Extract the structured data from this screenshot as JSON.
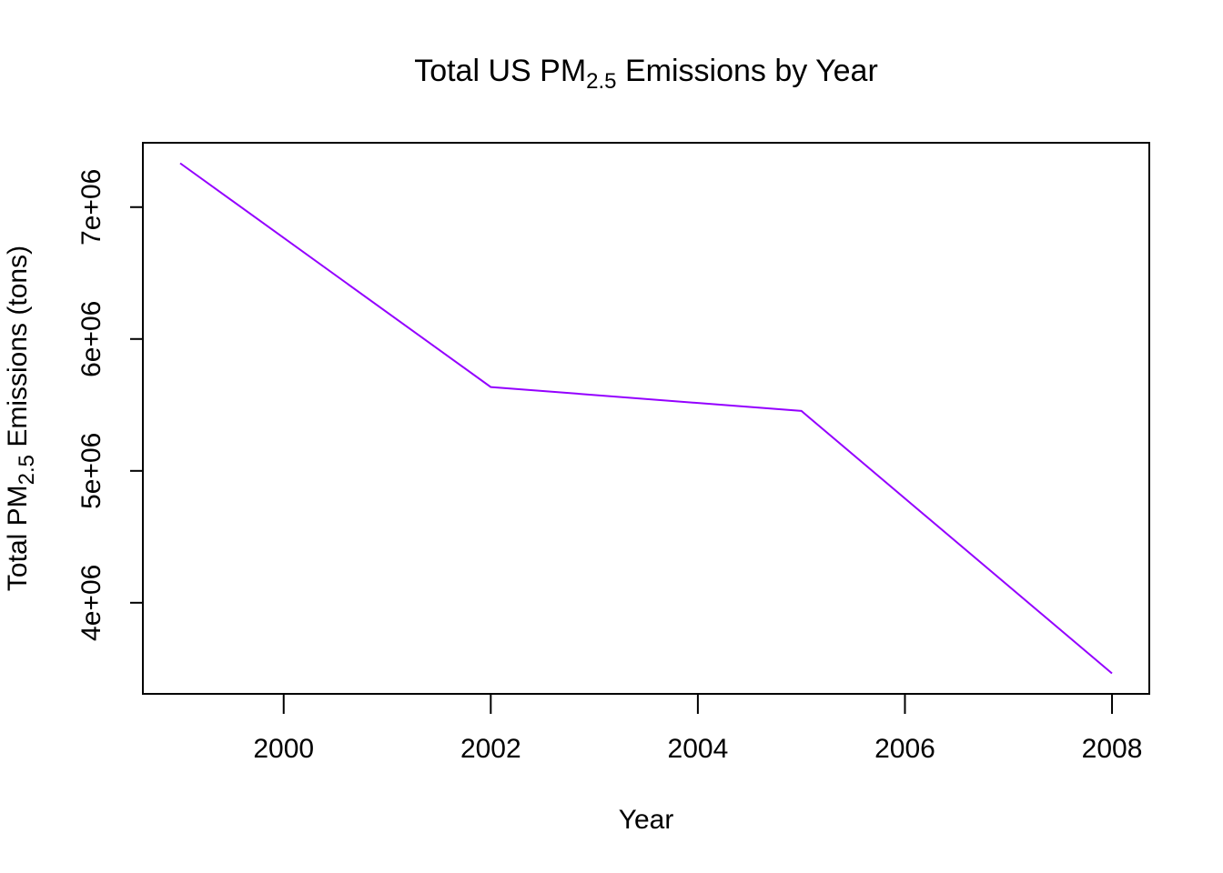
{
  "chart_data": {
    "type": "line",
    "title": {
      "prefix": "Total US PM",
      "subscript": "2.5",
      "suffix": " Emissions by Year"
    },
    "xlabel": "Year",
    "ylabel": {
      "prefix": "Total PM",
      "subscript": "2.5",
      "suffix": " Emissions (tons)"
    },
    "x": [
      1999,
      2002,
      2005,
      2008
    ],
    "series": [
      {
        "values": [
          7332967,
          5635780,
          5454703,
          3464206
        ]
      }
    ],
    "xlim": [
      1998.64,
      2008.36
    ],
    "ylim": [
      3309217,
      7487956
    ],
    "x_ticks": [
      2000,
      2002,
      2004,
      2006,
      2008
    ],
    "x_tick_labels": [
      "2000",
      "2002",
      "2004",
      "2006",
      "2008"
    ],
    "y_ticks": [
      4000000,
      5000000,
      6000000,
      7000000
    ],
    "y_tick_labels": [
      "4e+06",
      "5e+06",
      "6e+06",
      "7e+06"
    ],
    "line_color": "#9400ff",
    "grid": false,
    "legend": "none"
  }
}
